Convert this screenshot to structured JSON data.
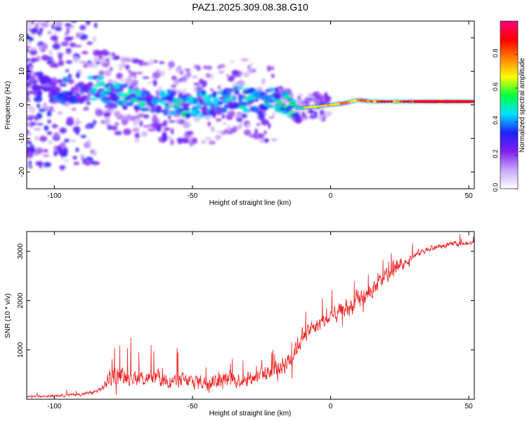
{
  "title": "PAZ1.2025.309.08.38.G10",
  "chart_data": [
    {
      "type": "heatmap",
      "title": "PAZ1.2025.309.08.38.G10",
      "xlabel": "Height of straight line (km)",
      "ylabel": "Frequency (Hz)",
      "xlim": [
        -110,
        52
      ],
      "ylim": [
        -25,
        25
      ],
      "xticks": [
        -100,
        -50,
        0,
        50
      ],
      "yticks": [
        20,
        10,
        0,
        -10,
        -20
      ],
      "colorbar": {
        "label": "Normalized spectral amplitude",
        "range": [
          0.0,
          1.0
        ],
        "ticks": [
          0.0,
          0.2,
          0.4,
          0.6,
          0.8
        ],
        "tick_labels": [
          "0.0",
          "0.2",
          "0.4",
          "0.6",
          "0.8"
        ],
        "colors": [
          "#ffffff",
          "#c8a8f8",
          "#8020f0",
          "#2020ff",
          "#00e0ff",
          "#00ff40",
          "#ffff00",
          "#ff8000",
          "#ff0000",
          "#ff0080"
        ]
      },
      "ridge": {
        "x": [
          -105,
          -98,
          -90,
          -83,
          -77,
          -70,
          -65,
          -58,
          -52,
          -45,
          -38,
          -32,
          -25,
          -18,
          -12,
          -5,
          0,
          5,
          10,
          15,
          20,
          25,
          30,
          40,
          52
        ],
        "f": [
          5,
          4,
          4.5,
          5,
          3,
          1,
          2,
          1,
          -1,
          0.5,
          1,
          2,
          0,
          2,
          -1,
          -0.5,
          0,
          0.5,
          1.5,
          1,
          1,
          1,
          1,
          1,
          1
        ],
        "amplitude": [
          0.3,
          0.35,
          0.3,
          0.45,
          0.4,
          0.5,
          0.4,
          0.45,
          0.45,
          0.4,
          0.4,
          0.45,
          0.4,
          0.5,
          0.55,
          0.7,
          0.75,
          0.8,
          0.8,
          0.85,
          0.9,
          0.85,
          0.9,
          0.95,
          0.95
        ]
      }
    },
    {
      "type": "line",
      "title": "",
      "xlabel": "Height of straight line (km)",
      "ylabel": "SNR (10 * v/v)",
      "xlim": [
        -110,
        52
      ],
      "ylim": [
        0,
        3400
      ],
      "xticks": [
        -100,
        -50,
        0,
        50
      ],
      "yticks": [
        1000,
        2000,
        3000
      ],
      "color": "#ee2020",
      "series": [
        {
          "name": "SNR",
          "x": [
            -110,
            -100,
            -90,
            -85,
            -82,
            -80,
            -75,
            -70,
            -60,
            -50,
            -40,
            -30,
            -25,
            -20,
            -15,
            -12,
            -10,
            -5,
            0,
            5,
            10,
            15,
            20,
            25,
            30,
            35,
            40,
            45,
            50,
            52
          ],
          "mean": [
            50,
            70,
            100,
            150,
            250,
            450,
            500,
            450,
            400,
            350,
            380,
            420,
            500,
            600,
            800,
            1100,
            1300,
            1500,
            1650,
            1800,
            2000,
            2200,
            2500,
            2700,
            2900,
            3050,
            3100,
            3150,
            3150,
            3200
          ],
          "spread": [
            40,
            50,
            60,
            80,
            150,
            350,
            350,
            300,
            300,
            300,
            300,
            300,
            300,
            350,
            400,
            400,
            300,
            300,
            300,
            350,
            350,
            350,
            250,
            200,
            150,
            120,
            100,
            100,
            80,
            60
          ]
        }
      ]
    }
  ]
}
